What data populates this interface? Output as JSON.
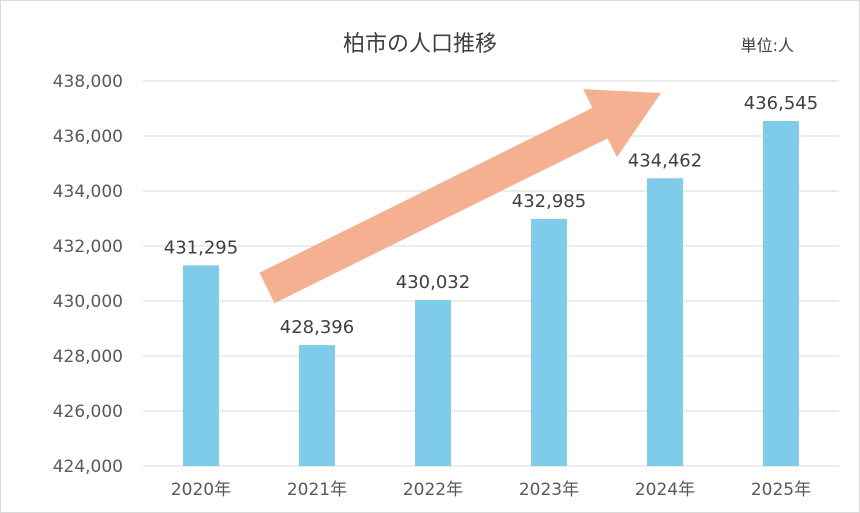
{
  "chart_data": {
    "type": "bar",
    "title": "柏市の人口推移",
    "unit_label": "単位:人",
    "categories": [
      "2020年",
      "2021年",
      "2022年",
      "2023年",
      "2024年",
      "2025年"
    ],
    "values": [
      431295,
      428396,
      430032,
      432985,
      434462,
      436545
    ],
    "value_labels": [
      "431,295",
      "428,396",
      "430,032",
      "432,985",
      "434,462",
      "436,545"
    ],
    "ylim": [
      424000,
      438000
    ],
    "yticks": [
      424000,
      426000,
      428000,
      430000,
      432000,
      434000,
      436000,
      438000
    ],
    "ytick_labels": [
      "424,000",
      "426,000",
      "428,000",
      "430,000",
      "432,000",
      "434,000",
      "436,000",
      "438,000"
    ],
    "grid": true,
    "legend": "none",
    "bar_color": "#7ecbea",
    "annotation": {
      "shape": "trend-arrow",
      "color": "#f4b090"
    }
  }
}
